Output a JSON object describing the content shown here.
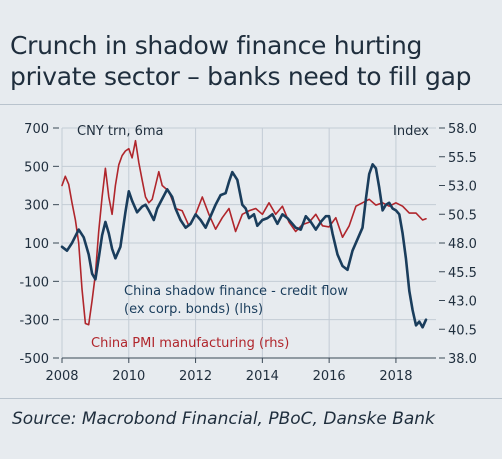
{
  "header": {
    "title_line1": "Crunch in shadow finance hurting",
    "title_line2": "private sector – banks need to fill gap"
  },
  "footer": {
    "source": "Source: Macrobond Financial, PBoC, Danske Bank"
  },
  "colors": {
    "background": "#e7ebef",
    "shadow_finance": "#1a3d5c",
    "pmi": "#b0262c",
    "text": "#1f2e3d"
  },
  "chart_data": {
    "type": "line",
    "left_axis": {
      "label": "CNY trn, 6ma",
      "ylim": [
        -500,
        700
      ],
      "ticks": [
        700,
        500,
        300,
        100,
        -100,
        -300,
        -500
      ],
      "tick_labels": [
        "700",
        "500",
        "300",
        "100",
        "-100",
        "-300",
        "-500"
      ]
    },
    "right_axis": {
      "label": "Index",
      "ylim": [
        38.0,
        58.0
      ],
      "ticks": [
        58.0,
        55.5,
        53.0,
        50.5,
        48.0,
        45.5,
        43.0,
        40.5,
        38.0
      ],
      "tick_labels": [
        "58.0",
        "55.5",
        "53.0",
        "50.5",
        "48.0",
        "45.5",
        "43.0",
        "40.5",
        "38.0"
      ]
    },
    "x_axis": {
      "xlim": [
        2008,
        2019.2
      ],
      "ticks": [
        2008,
        2010,
        2012,
        2014,
        2016,
        2018
      ],
      "tick_labels": [
        "2008",
        "2010",
        "2012",
        "2014",
        "2016",
        "2018"
      ]
    },
    "annotations": {
      "shadow_line1": "China shadow finance - credit flow",
      "shadow_line2": "(ex corp. bonds) (lhs)",
      "pmi": "China PMI manufacturing (rhs)"
    },
    "grid": true,
    "series": [
      {
        "name": "China shadow finance - credit flow (ex corp. bonds) (lhs)",
        "axis": "left",
        "color": "#1a3d5c",
        "x": [
          2008.0,
          2008.15,
          2008.3,
          2008.5,
          2008.65,
          2008.8,
          2008.9,
          2009.0,
          2009.1,
          2009.2,
          2009.3,
          2009.4,
          2009.5,
          2009.6,
          2009.75,
          2009.9,
          2010.0,
          2010.1,
          2010.25,
          2010.4,
          2010.5,
          2010.6,
          2010.75,
          2010.85,
          2011.0,
          2011.15,
          2011.3,
          2011.4,
          2011.55,
          2011.7,
          2011.85,
          2012.0,
          2012.15,
          2012.3,
          2012.45,
          2012.6,
          2012.75,
          2012.9,
          2013.0,
          2013.1,
          2013.25,
          2013.4,
          2013.5,
          2013.6,
          2013.75,
          2013.85,
          2014.0,
          2014.15,
          2014.3,
          2014.45,
          2014.6,
          2014.75,
          2014.9,
          2015.0,
          2015.15,
          2015.3,
          2015.45,
          2015.6,
          2015.75,
          2015.9,
          2016.0,
          2016.1,
          2016.25,
          2016.4,
          2016.55,
          2016.7,
          2016.85,
          2017.0,
          2017.1,
          2017.2,
          2017.3,
          2017.4,
          2017.5,
          2017.6,
          2017.7,
          2017.8,
          2017.9,
          2018.0,
          2018.1,
          2018.2,
          2018.3,
          2018.4,
          2018.5,
          2018.6,
          2018.7,
          2018.8,
          2018.9
        ],
        "values": [
          80,
          60,
          100,
          170,
          130,
          40,
          -60,
          -90,
          20,
          140,
          210,
          150,
          70,
          20,
          80,
          260,
          370,
          320,
          260,
          290,
          300,
          270,
          220,
          280,
          330,
          380,
          340,
          280,
          220,
          180,
          200,
          250,
          220,
          180,
          240,
          300,
          350,
          360,
          420,
          470,
          430,
          300,
          280,
          230,
          250,
          190,
          220,
          230,
          250,
          200,
          250,
          230,
          200,
          180,
          170,
          240,
          210,
          170,
          210,
          240,
          240,
          150,
          40,
          -20,
          -40,
          60,
          120,
          180,
          330,
          460,
          510,
          490,
          390,
          270,
          300,
          310,
          280,
          270,
          250,
          150,
          20,
          -150,
          -250,
          -330,
          -310,
          -340,
          -300
        ]
      },
      {
        "name": "China PMI manufacturing (rhs)",
        "axis": "right",
        "color": "#b0262c",
        "x": [
          2008.0,
          2008.1,
          2008.2,
          2008.3,
          2008.4,
          2008.5,
          2008.6,
          2008.7,
          2008.8,
          2008.9,
          2009.0,
          2009.1,
          2009.2,
          2009.3,
          2009.4,
          2009.5,
          2009.6,
          2009.7,
          2009.8,
          2009.9,
          2010.0,
          2010.1,
          2010.2,
          2010.3,
          2010.4,
          2010.5,
          2010.6,
          2010.7,
          2010.8,
          2010.9,
          2011.0,
          2011.2,
          2011.4,
          2011.6,
          2011.8,
          2012.0,
          2012.2,
          2012.4,
          2012.6,
          2012.8,
          2013.0,
          2013.2,
          2013.4,
          2013.6,
          2013.8,
          2014.0,
          2014.2,
          2014.4,
          2014.6,
          2014.8,
          2015.0,
          2015.2,
          2015.4,
          2015.6,
          2015.8,
          2016.0,
          2016.2,
          2016.4,
          2016.6,
          2016.8,
          2017.0,
          2017.2,
          2017.4,
          2017.6,
          2017.8,
          2018.0,
          2018.2,
          2018.4,
          2018.6,
          2018.8,
          2018.9
        ],
        "values": [
          53.0,
          53.8,
          53.1,
          51.5,
          50.0,
          48.0,
          44.0,
          41.0,
          40.9,
          43.0,
          45.3,
          49.0,
          52.0,
          54.5,
          52.0,
          50.5,
          53.0,
          54.8,
          55.6,
          56.0,
          56.2,
          55.4,
          56.9,
          55.0,
          53.5,
          52.0,
          51.5,
          51.8,
          53.0,
          54.2,
          53.0,
          52.5,
          51.0,
          50.8,
          49.5,
          50.5,
          52.0,
          50.5,
          49.2,
          50.2,
          51.0,
          49.0,
          50.5,
          50.8,
          51.0,
          50.5,
          51.5,
          50.5,
          51.2,
          49.8,
          49.0,
          49.6,
          49.8,
          50.5,
          49.5,
          49.4,
          50.2,
          48.5,
          49.5,
          51.2,
          51.5,
          51.8,
          51.3,
          51.5,
          51.2,
          51.5,
          51.2,
          50.6,
          50.6,
          50.0,
          50.1
        ]
      }
    ]
  }
}
